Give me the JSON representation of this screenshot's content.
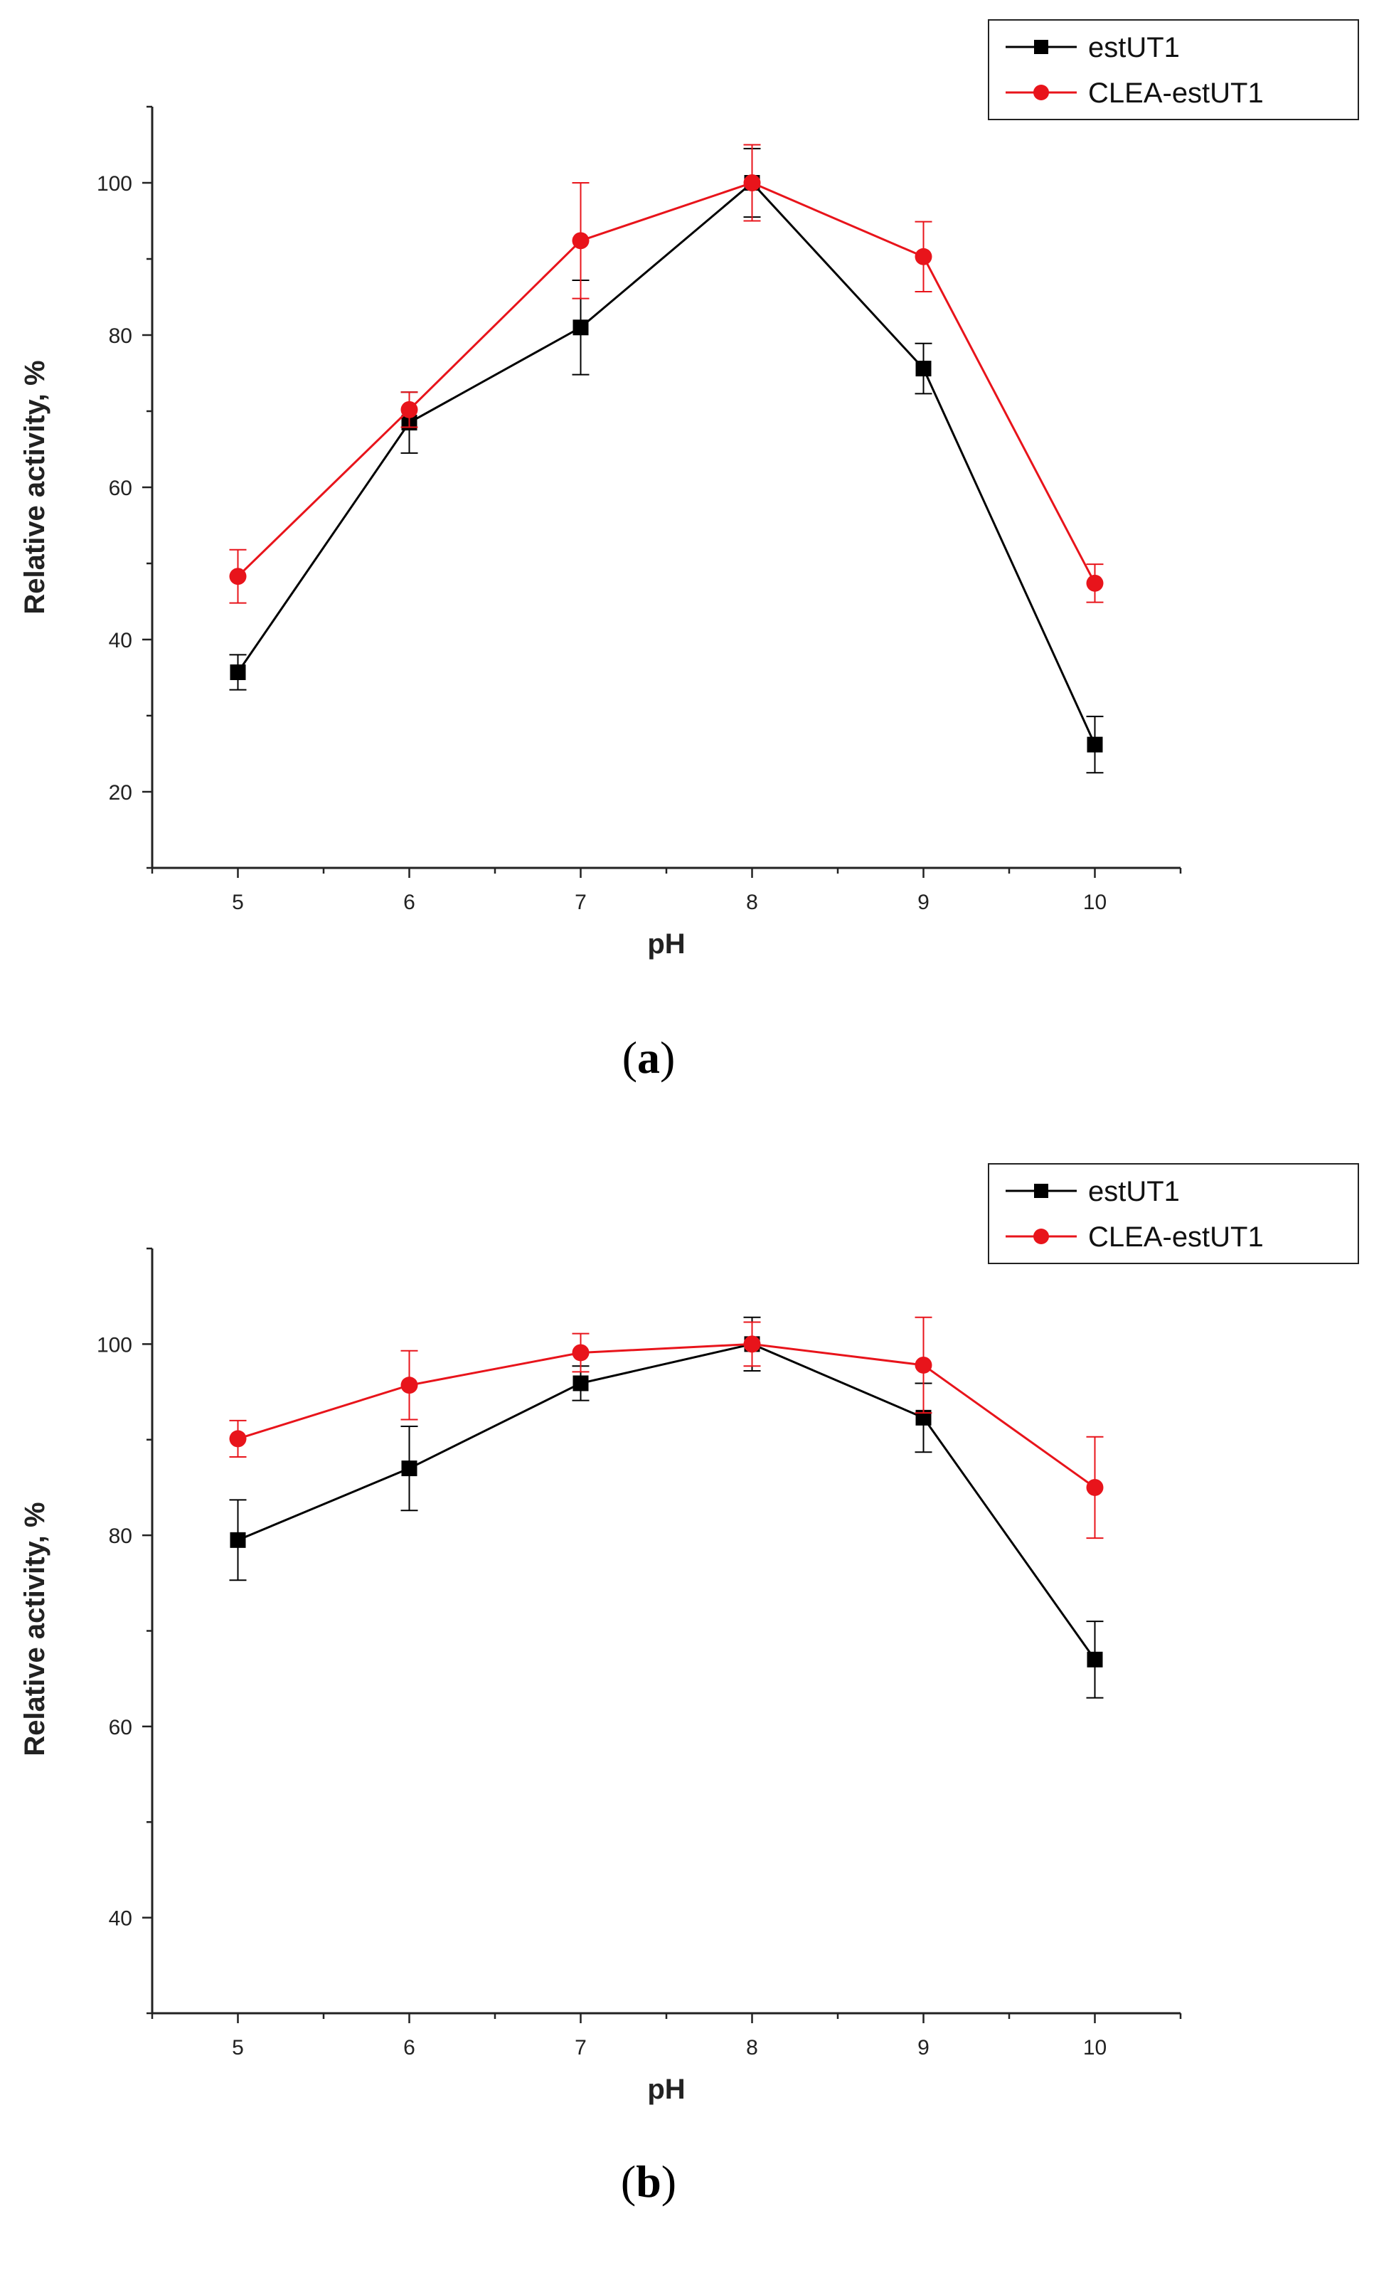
{
  "colors": {
    "estUT1": "#000000",
    "CLEA-estUT1": "#e8141b",
    "axis": "#222222"
  },
  "chart_data": [
    {
      "type": "line",
      "panel_label": "a",
      "title": "",
      "xlabel": "pH",
      "ylabel": "Relative activity, %",
      "xlim": [
        4.5,
        10.5
      ],
      "ylim": [
        10,
        110
      ],
      "x_ticks": [
        5,
        6,
        7,
        8,
        9,
        10
      ],
      "y_ticks": [
        20,
        40,
        60,
        80,
        100
      ],
      "x": [
        5,
        6,
        7,
        8,
        9,
        10
      ],
      "legend_position": "top-right",
      "series": [
        {
          "name": "estUT1",
          "marker": "square",
          "color": "#000000",
          "values": [
            35.7,
            68.5,
            81.0,
            100.0,
            75.6,
            26.2
          ],
          "errors": [
            2.3,
            4.0,
            6.2,
            4.5,
            3.3,
            3.7
          ]
        },
        {
          "name": "CLEA-estUT1",
          "marker": "circle",
          "color": "#e8141b",
          "values": [
            48.3,
            70.2,
            92.4,
            100.0,
            90.3,
            47.4
          ],
          "errors": [
            3.5,
            2.3,
            7.6,
            5.0,
            4.6,
            2.5
          ]
        }
      ]
    },
    {
      "type": "line",
      "panel_label": "b",
      "title": "",
      "xlabel": "pH",
      "ylabel": "Relative activity, %",
      "xlim": [
        4.5,
        10.5
      ],
      "ylim": [
        30,
        110
      ],
      "x_ticks": [
        5,
        6,
        7,
        8,
        9,
        10
      ],
      "y_ticks": [
        40,
        60,
        80,
        100
      ],
      "x": [
        5,
        6,
        7,
        8,
        9,
        10
      ],
      "legend_position": "top-right",
      "series": [
        {
          "name": "estUT1",
          "marker": "square",
          "color": "#000000",
          "values": [
            79.5,
            87.0,
            95.9,
            100.0,
            92.3,
            67.0
          ],
          "errors": [
            4.2,
            4.4,
            1.8,
            2.8,
            3.6,
            4.0
          ]
        },
        {
          "name": "CLEA-estUT1",
          "marker": "circle",
          "color": "#e8141b",
          "values": [
            90.1,
            95.7,
            99.1,
            100.0,
            97.8,
            85.0
          ],
          "errors": [
            1.9,
            3.6,
            2.0,
            2.3,
            5.0,
            5.3
          ]
        }
      ]
    }
  ]
}
